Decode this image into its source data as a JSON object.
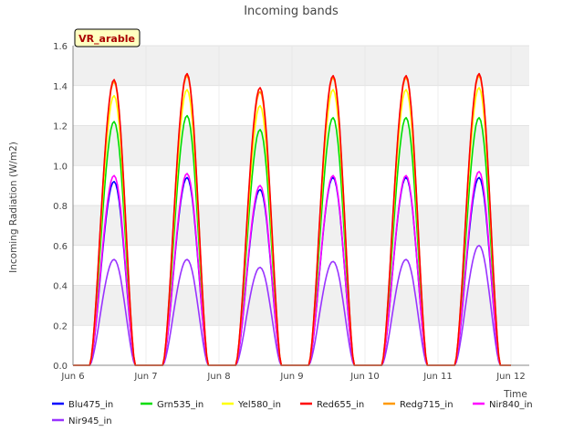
{
  "chart_data": {
    "type": "line",
    "title": "Incoming bands",
    "xlabel": "Time",
    "ylabel": "Incoming Radiation (W/m2)",
    "site_label": "VR_arable",
    "xlim": [
      "Jun 6",
      "Jun 12 06:00"
    ],
    "ylim": [
      0.0,
      1.6
    ],
    "yticks": [
      0.0,
      0.2,
      0.4,
      0.6,
      0.8,
      1.0,
      1.2,
      1.4,
      1.6
    ],
    "ytick_labels": [
      "0.0",
      "0.2",
      "0.4",
      "0.6",
      "0.8",
      "1.0",
      "1.2",
      "1.4",
      "1.6"
    ],
    "xticks": [
      "Jun 6",
      "Jun 7",
      "Jun 8",
      "Jun 9",
      "Jun 10",
      "Jun 11",
      "Jun 12"
    ],
    "grid": true,
    "background_bands": "alternating light gray",
    "legend_position": "bottom",
    "series": [
      {
        "name": "Blu475_in",
        "color": "#0000ff",
        "peaks": [
          0.92,
          0.94,
          0.88,
          0.94,
          0.94,
          0.94
        ]
      },
      {
        "name": "Grn535_in",
        "color": "#00dd00",
        "peaks": [
          1.22,
          1.25,
          1.18,
          1.24,
          1.24,
          1.24
        ]
      },
      {
        "name": "Yel580_in",
        "color": "#ffff00",
        "peaks": [
          1.35,
          1.38,
          1.3,
          1.38,
          1.38,
          1.39
        ]
      },
      {
        "name": "Red655_in",
        "color": "#ff0000",
        "peaks": [
          1.43,
          1.46,
          1.39,
          1.45,
          1.45,
          1.46
        ]
      },
      {
        "name": "Redg715_in",
        "color": "#ff9900",
        "peaks": [
          1.42,
          1.45,
          1.37,
          1.44,
          1.44,
          1.45
        ]
      },
      {
        "name": "Nir840_in",
        "color": "#ff00ff",
        "peaks": [
          0.95,
          0.96,
          0.9,
          0.95,
          0.95,
          0.97
        ]
      },
      {
        "name": "Nir945_in",
        "color": "#9933ff",
        "peaks": [
          0.53,
          0.53,
          0.49,
          0.52,
          0.53,
          0.6
        ]
      }
    ],
    "day_start_offsets_hours": [
      5.5,
      5.5,
      5.5,
      5.5,
      5.5,
      5.5
    ],
    "day_peak_hours": [
      13.5,
      13.5,
      13.5,
      13.5,
      13.5,
      13.5
    ],
    "day_end_hours": [
      20.5,
      20.5,
      20.5,
      20.5,
      20.5,
      20.5
    ]
  }
}
